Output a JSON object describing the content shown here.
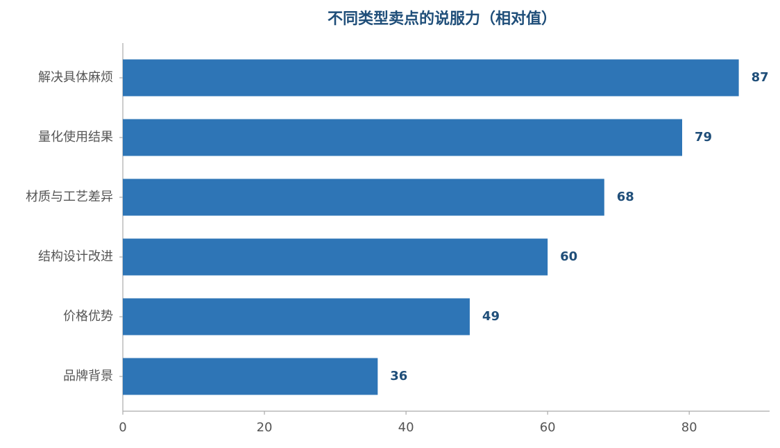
{
  "chart_data": {
    "type": "barh",
    "title": "不同类型卖点的说服力（相对值）",
    "categories": [
      "解决具体麻烦",
      "量化使用结果",
      "材质与工艺差异",
      "结构设计改进",
      "价格优势",
      "品牌背景"
    ],
    "values": [
      87,
      79,
      68,
      60,
      49,
      36
    ],
    "color": "#2e75b6",
    "xlim": [
      0,
      91.35
    ],
    "xticks": [
      0,
      20,
      40,
      60,
      80
    ],
    "grid": false
  }
}
